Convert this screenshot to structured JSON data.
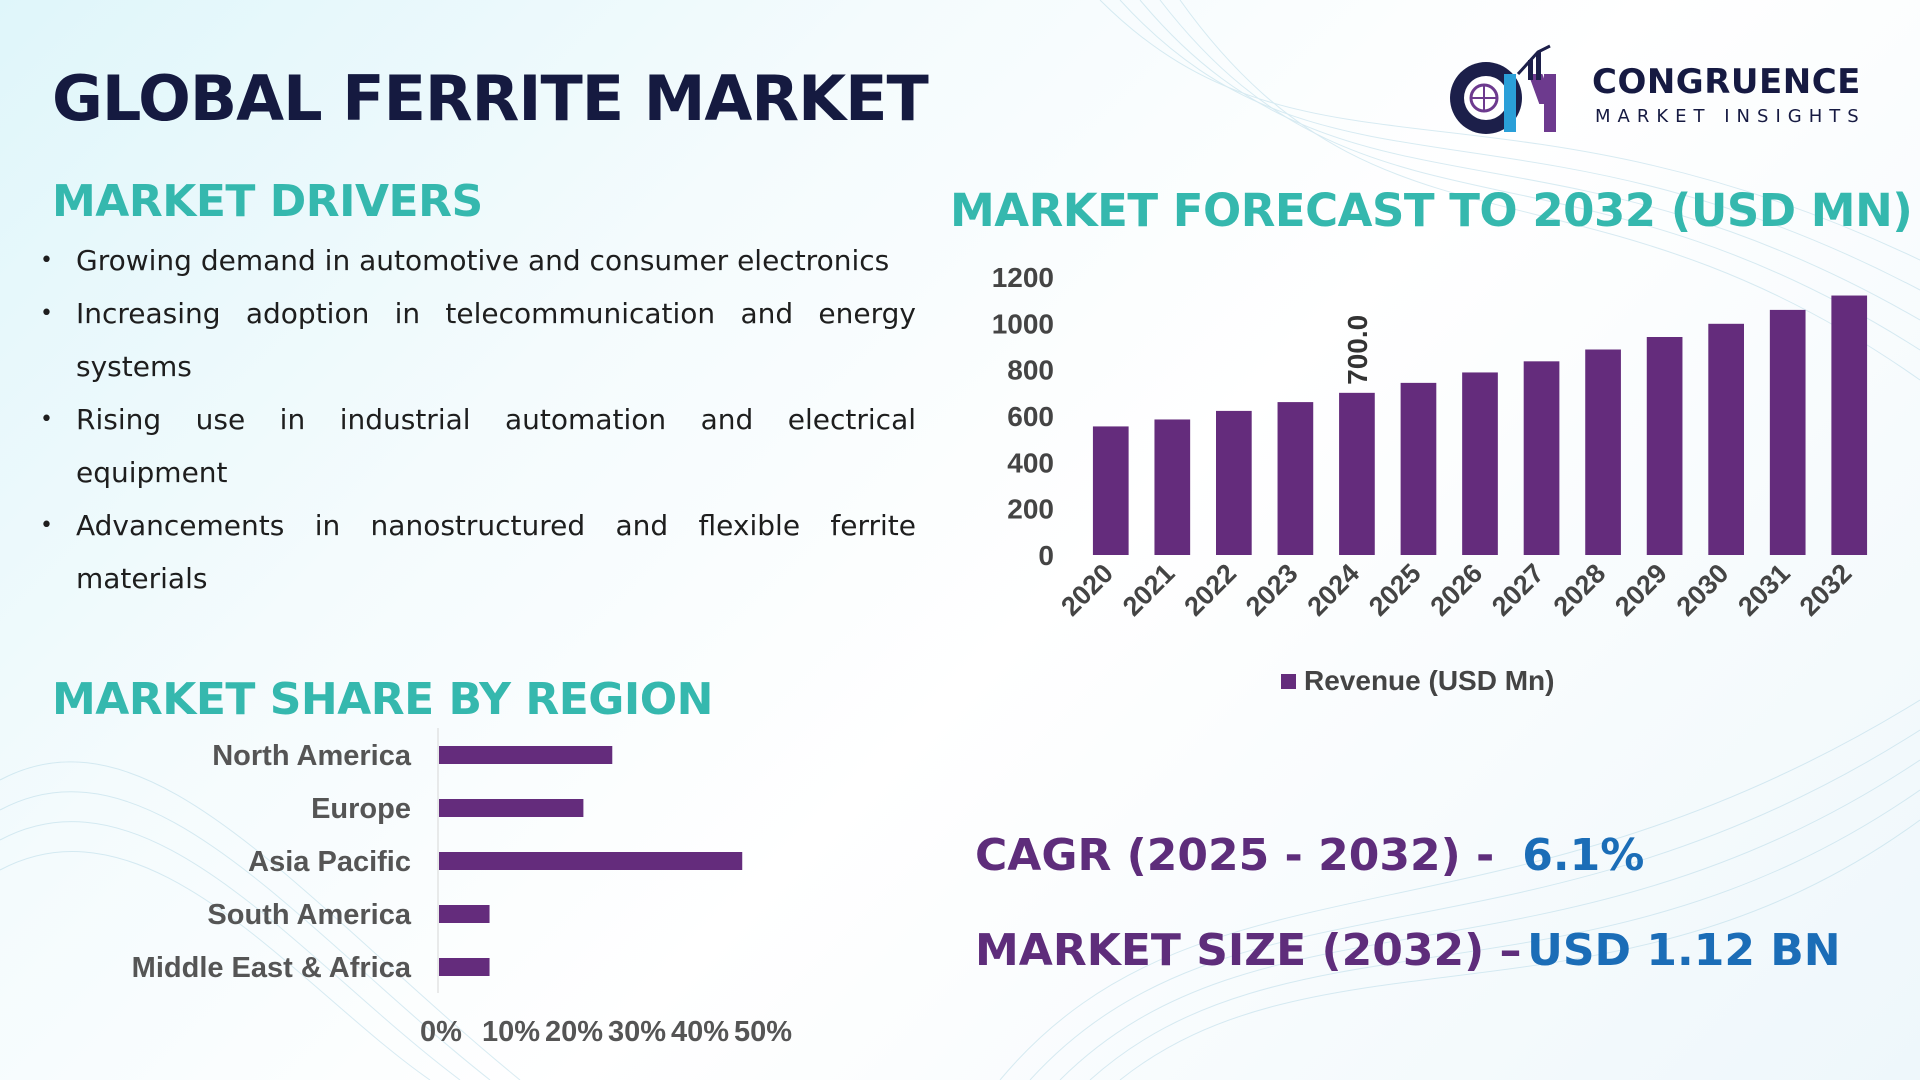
{
  "title": "GLOBAL FERRITE MARKET",
  "logo": {
    "name": "CONGRUENCE",
    "tagline": "MARKET INSIGHTS"
  },
  "drivers": {
    "heading": "MARKET DRIVERS",
    "items": [
      "Growing demand in automotive and consumer electronics",
      "Increasing adoption in telecommunication and energy systems",
      "Rising use in industrial automation and electrical equipment",
      "Advancements in nanostructured and flexible ferrite materials"
    ]
  },
  "region": {
    "heading": "MARKET SHARE BY REGION"
  },
  "forecast": {
    "heading": "MARKET FORECAST TO 2032 (USD MN)"
  },
  "stats": {
    "cagr_label": "CAGR (2025 - 2032) -",
    "cagr_value": "6.1%",
    "size_label": "MARKET SIZE (2032) –",
    "size_value": "USD 1.12 BN"
  },
  "colors": {
    "bar": "#642c7c",
    "title": "#151a40",
    "section": "#35b8ae",
    "stat_label": "#5e2d7b",
    "stat_value": "#1b6db7"
  },
  "chart_data": [
    {
      "type": "bar",
      "title": "MARKET FORECAST TO 2032 (USD MN)",
      "categories": [
        "2020",
        "2021",
        "2022",
        "2023",
        "2024",
        "2025",
        "2026",
        "2027",
        "2028",
        "2029",
        "2030",
        "2031",
        "2032"
      ],
      "series": [
        {
          "name": "Revenue (USD Mn)",
          "values": [
            555,
            585,
            622,
            660,
            700,
            743,
            788,
            836,
            887,
            941,
            998,
            1058,
            1120
          ]
        }
      ],
      "data_labels": [
        {
          "category": "2024",
          "text": "700.0"
        }
      ],
      "yticks": [
        "0",
        "200",
        "400",
        "600",
        "800",
        "1000",
        "1200"
      ],
      "ylim": [
        0,
        1200
      ],
      "grid": false,
      "legend": "bottom"
    },
    {
      "type": "bar",
      "orientation": "horizontal",
      "title": "MARKET SHARE BY REGION",
      "categories": [
        "North America",
        "Europe",
        "Asia Pacific",
        "South America",
        "Middle East & Africa"
      ],
      "values": [
        24,
        20,
        42,
        7,
        7
      ],
      "xticks": [
        "0%",
        "10%",
        "20%",
        "30%",
        "40%",
        "50%"
      ],
      "xlim": [
        0,
        50
      ],
      "grid": false
    }
  ]
}
